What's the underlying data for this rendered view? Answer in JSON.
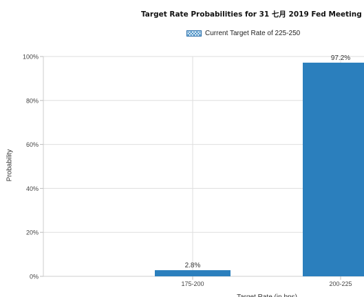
{
  "chart_data": {
    "type": "bar",
    "title": "Target Rate Probabilities for 31 七月 2019 Fed Meeting",
    "legend": "Current Target Rate of 225-250",
    "ylabel": "Probability",
    "xlabel": "Target Rate (in bps)",
    "categories": [
      "175-200",
      "200-225"
    ],
    "values": [
      2.8,
      97.2
    ],
    "data_labels": [
      "2.8%",
      "97.2%"
    ],
    "ylim": [
      0,
      100
    ],
    "yticks": [
      "0%",
      "20%",
      "40%",
      "60%",
      "80%",
      "100%"
    ],
    "ytick_values": [
      0,
      20,
      40,
      60,
      80,
      100
    ],
    "grid": true,
    "legend_position": "top-center",
    "bar_color": "#2b7fbd"
  }
}
